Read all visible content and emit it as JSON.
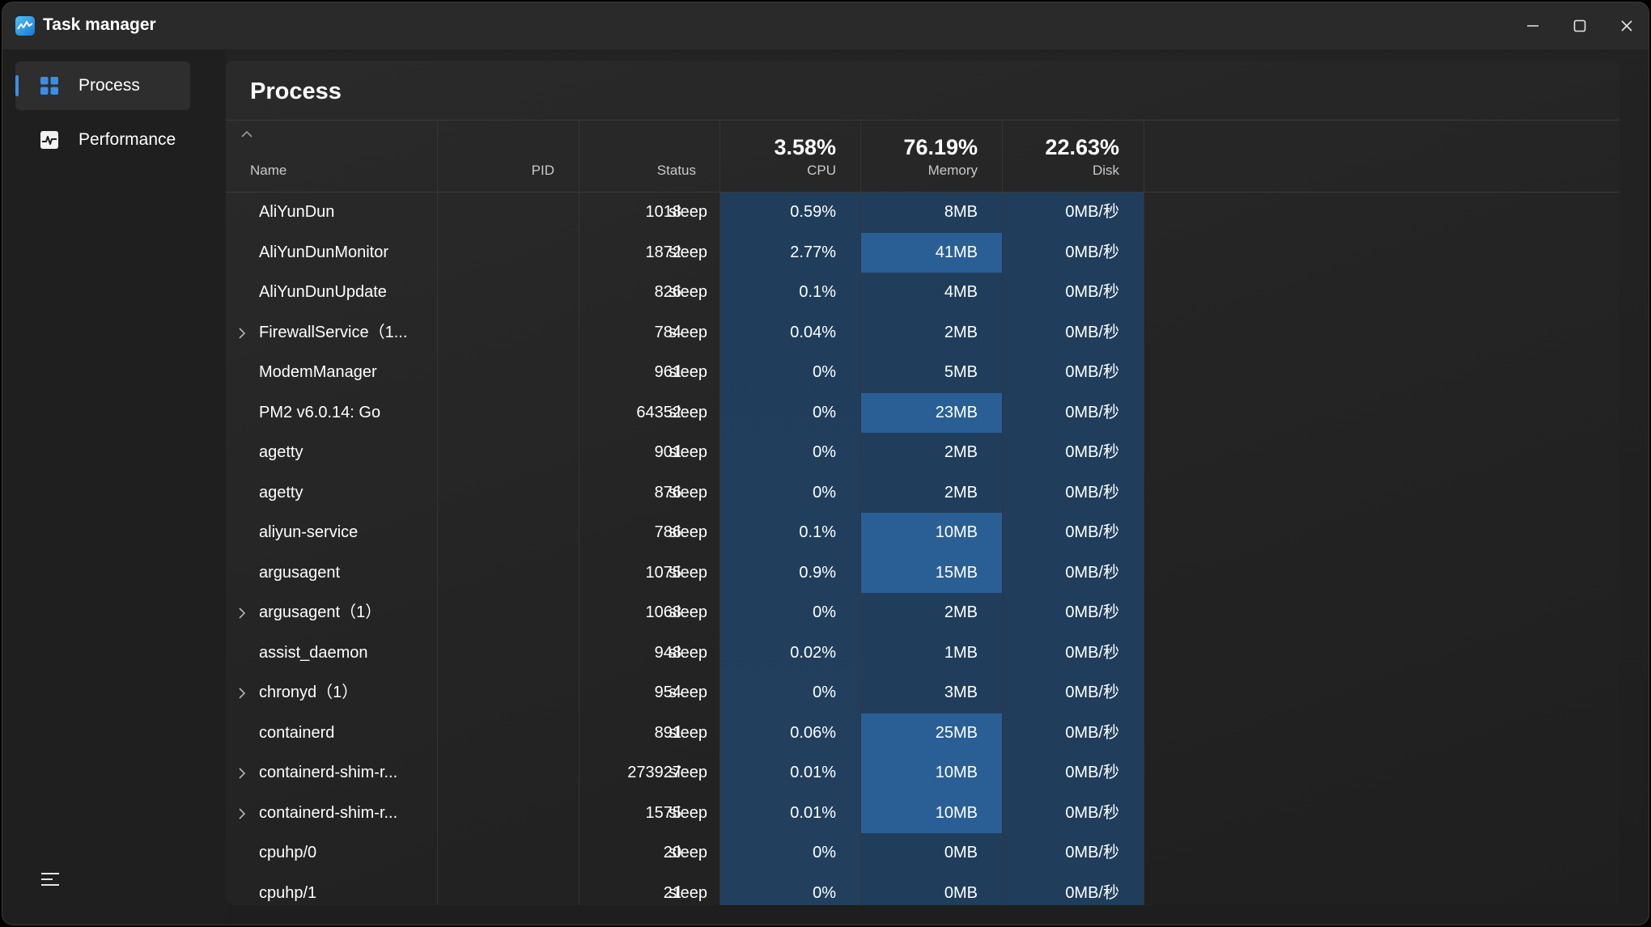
{
  "window": {
    "title": "Task manager"
  },
  "controls": {
    "minimize": "minimize-icon",
    "maximize": "maximize-icon",
    "close": "close-icon"
  },
  "sidebar": {
    "items": [
      {
        "label": "Process",
        "icon": "process-grid-icon",
        "active": true
      },
      {
        "label": "Performance",
        "icon": "performance-chart-icon",
        "active": false
      }
    ],
    "menu_icon": "menu-lines-icon"
  },
  "main": {
    "title": "Process",
    "columns": {
      "name": "Name",
      "pid": "PID",
      "status": "Status",
      "cpu": {
        "label": "CPU",
        "total": "3.58%"
      },
      "memory": {
        "label": "Memory",
        "total": "76.19%"
      },
      "disk": {
        "label": "Disk",
        "total": "22.63%"
      }
    },
    "rows": [
      {
        "name": "AliYunDun",
        "expandable": false,
        "pid": "1018",
        "status": "sleep",
        "cpu": "0.59%",
        "memory": "8MB",
        "mem_high": false,
        "disk": "0MB/秒"
      },
      {
        "name": "AliYunDunMonitor",
        "expandable": false,
        "pid": "1872",
        "status": "sleep",
        "cpu": "2.77%",
        "memory": "41MB",
        "mem_high": true,
        "disk": "0MB/秒"
      },
      {
        "name": "AliYunDunUpdate",
        "expandable": false,
        "pid": "826",
        "status": "sleep",
        "cpu": "0.1%",
        "memory": "4MB",
        "mem_high": false,
        "disk": "0MB/秒"
      },
      {
        "name": "FirewallService（1...",
        "expandable": true,
        "pid": "784",
        "status": "sleep",
        "cpu": "0.04%",
        "memory": "2MB",
        "mem_high": false,
        "disk": "0MB/秒"
      },
      {
        "name": "ModemManager",
        "expandable": false,
        "pid": "961",
        "status": "sleep",
        "cpu": "0%",
        "memory": "5MB",
        "mem_high": false,
        "disk": "0MB/秒"
      },
      {
        "name": "PM2 v6.0.14: Go",
        "expandable": false,
        "pid": "64352",
        "status": "sleep",
        "cpu": "0%",
        "memory": "23MB",
        "mem_high": true,
        "disk": "0MB/秒"
      },
      {
        "name": "agetty",
        "expandable": false,
        "pid": "901",
        "status": "sleep",
        "cpu": "0%",
        "memory": "2MB",
        "mem_high": false,
        "disk": "0MB/秒"
      },
      {
        "name": "agetty",
        "expandable": false,
        "pid": "876",
        "status": "sleep",
        "cpu": "0%",
        "memory": "2MB",
        "mem_high": false,
        "disk": "0MB/秒"
      },
      {
        "name": "aliyun-service",
        "expandable": false,
        "pid": "786",
        "status": "sleep",
        "cpu": "0.1%",
        "memory": "10MB",
        "mem_high": true,
        "disk": "0MB/秒"
      },
      {
        "name": "argusagent",
        "expandable": false,
        "pid": "1075",
        "status": "sleep",
        "cpu": "0.9%",
        "memory": "15MB",
        "mem_high": true,
        "disk": "0MB/秒"
      },
      {
        "name": "argusagent（1）",
        "expandable": true,
        "pid": "1068",
        "status": "sleep",
        "cpu": "0%",
        "memory": "2MB",
        "mem_high": false,
        "disk": "0MB/秒"
      },
      {
        "name": "assist_daemon",
        "expandable": false,
        "pid": "948",
        "status": "sleep",
        "cpu": "0.02%",
        "memory": "1MB",
        "mem_high": false,
        "disk": "0MB/秒"
      },
      {
        "name": "chronyd（1）",
        "expandable": true,
        "pid": "954",
        "status": "sleep",
        "cpu": "0%",
        "memory": "3MB",
        "mem_high": false,
        "disk": "0MB/秒"
      },
      {
        "name": "containerd",
        "expandable": false,
        "pid": "891",
        "status": "sleep",
        "cpu": "0.06%",
        "memory": "25MB",
        "mem_high": true,
        "disk": "0MB/秒"
      },
      {
        "name": "containerd-shim-r...",
        "expandable": true,
        "pid": "273927",
        "status": "sleep",
        "cpu": "0.01%",
        "memory": "10MB",
        "mem_high": true,
        "disk": "0MB/秒"
      },
      {
        "name": "containerd-shim-r...",
        "expandable": true,
        "pid": "1575",
        "status": "sleep",
        "cpu": "0.01%",
        "memory": "10MB",
        "mem_high": true,
        "disk": "0MB/秒"
      },
      {
        "name": "cpuhp/0",
        "expandable": false,
        "pid": "20",
        "status": "sleep",
        "cpu": "0%",
        "memory": "0MB",
        "mem_high": false,
        "disk": "0MB/秒"
      },
      {
        "name": "cpuhp/1",
        "expandable": false,
        "pid": "21",
        "status": "sleep",
        "cpu": "0%",
        "memory": "0MB",
        "mem_high": false,
        "disk": "0MB/秒"
      }
    ]
  },
  "colors": {
    "accent": "#3b8ee6",
    "resource_column": "#203e5c",
    "memory_highlight": "#2a5f96"
  }
}
